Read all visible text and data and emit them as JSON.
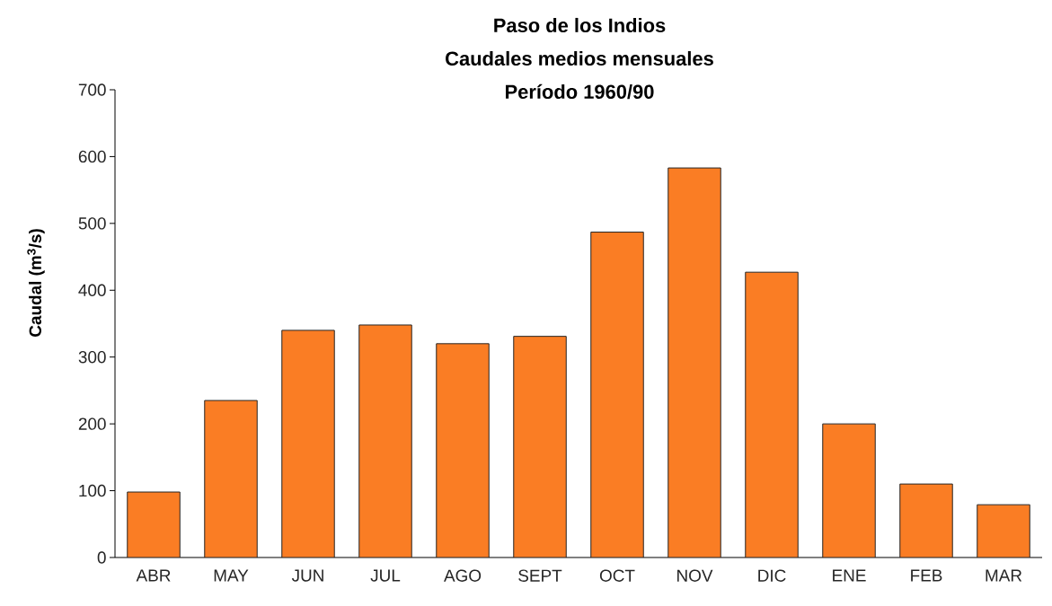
{
  "chart_data": {
    "type": "bar",
    "title": "Paso de los Indios",
    "subtitle": "Caudales medios mensuales",
    "annotations": [
      "Período 1960/90"
    ],
    "ylabel": "Caudal (m$^{3}$/s)",
    "categories": [
      "ABR",
      "MAY",
      "JUN",
      "JUL",
      "AGO",
      "SEPT",
      "OCT",
      "NOV",
      "DIC",
      "ENE",
      "FEB",
      "MAR"
    ],
    "values": [
      98,
      235,
      340,
      348,
      320,
      331,
      487,
      583,
      427,
      200,
      110,
      79
    ],
    "color": "#fa7d24",
    "ylim": [
      0,
      700
    ],
    "yticks": [
      0,
      100,
      200,
      300,
      400,
      500,
      600,
      700
    ],
    "grid": false
  }
}
